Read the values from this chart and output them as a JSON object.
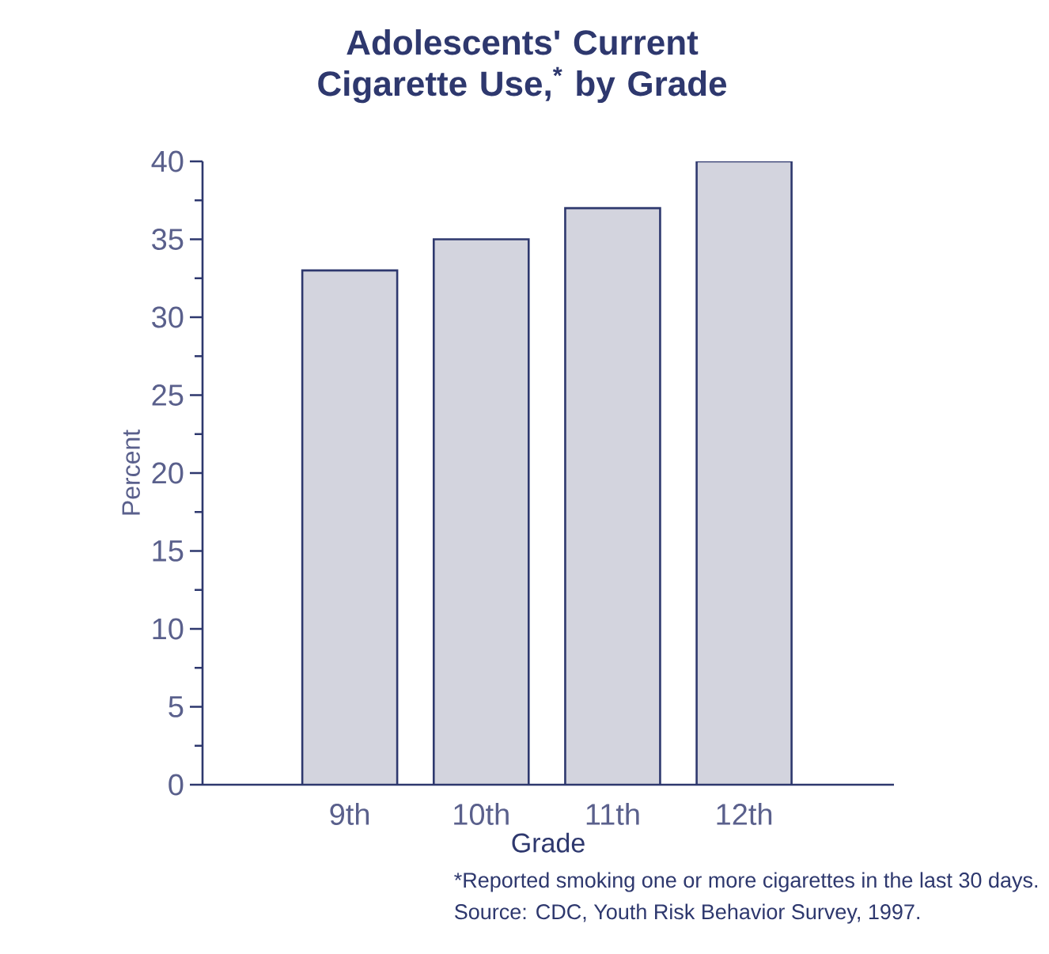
{
  "chart_data": {
    "type": "bar",
    "title": "Adolescents' Current Cigarette Use,$^{*}$ by Grade",
    "xlabel": "Grade",
    "ylabel": "Percent",
    "categories": [
      "9th",
      "10th",
      "11th",
      "12th"
    ],
    "values": [
      33,
      35,
      37,
      40
    ],
    "color": "#d3d4de",
    "ylim": [
      0,
      40
    ],
    "yticks": [
      0,
      {
        "value": 2.5,
        "label": null
      },
      5,
      {
        "value": 7.5,
        "label": null
      },
      10,
      {
        "value": 12.5,
        "label": null
      },
      15,
      {
        "value": 17.5,
        "label": null
      },
      20,
      {
        "value": 22.5,
        "label": null
      },
      25,
      {
        "value": 27.5,
        "label": null
      },
      30,
      {
        "value": 32.5,
        "label": null
      },
      35,
      {
        "value": 37.5,
        "label": null
      },
      40
    ],
    "grid": false,
    "annotations": [
      "*Reported smoking one or more cigarettes in the last 30 days.",
      "Source: CDC, Youth Risk Behavior Survey, 1997."
    ]
  }
}
